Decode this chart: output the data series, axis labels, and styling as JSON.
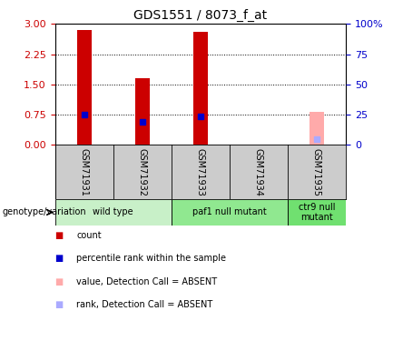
{
  "title": "GDS1551 / 8073_f_at",
  "samples": [
    "GSM71931",
    "GSM71932",
    "GSM71933",
    "GSM71934",
    "GSM71935"
  ],
  "red_bar_heights": [
    2.85,
    1.65,
    2.8,
    0.0,
    0.0
  ],
  "blue_marker_values": [
    0.75,
    0.58,
    0.7,
    0.0,
    0.0
  ],
  "pink_bar_heights": [
    0.0,
    0.0,
    0.0,
    0.0,
    0.82
  ],
  "lavender_marker_values": [
    0.0,
    0.0,
    0.0,
    0.0,
    0.15
  ],
  "absent_flags": [
    false,
    false,
    false,
    false,
    true
  ],
  "ylim_left": [
    0,
    3
  ],
  "ylim_right": [
    0,
    100
  ],
  "yticks_left": [
    0,
    0.75,
    1.5,
    2.25,
    3
  ],
  "yticks_right": [
    0,
    25,
    50,
    75,
    100
  ],
  "genotype_groups": [
    {
      "label": "wild type",
      "start": 0,
      "end": 2,
      "color": "#c8f0c8"
    },
    {
      "label": "paf1 null mutant",
      "start": 2,
      "end": 4,
      "color": "#90e890"
    },
    {
      "label": "ctr9 null\nmutant",
      "start": 4,
      "end": 5,
      "color": "#70e070"
    }
  ],
  "bar_width": 0.25,
  "red_color": "#cc0000",
  "blue_color": "#0000cc",
  "pink_color": "#ffaaaa",
  "lavender_color": "#aaaaff",
  "bg_color": "#ffffff",
  "plot_bg": "#ffffff",
  "tick_color_left": "#cc0000",
  "tick_color_right": "#0000cc",
  "grid_color": "#000000",
  "sample_box_color": "#cccccc",
  "legend_items": [
    {
      "color": "#cc0000",
      "label": "count"
    },
    {
      "color": "#0000cc",
      "label": "percentile rank within the sample"
    },
    {
      "color": "#ffaaaa",
      "label": "value, Detection Call = ABSENT"
    },
    {
      "color": "#aaaaff",
      "label": "rank, Detection Call = ABSENT"
    }
  ]
}
